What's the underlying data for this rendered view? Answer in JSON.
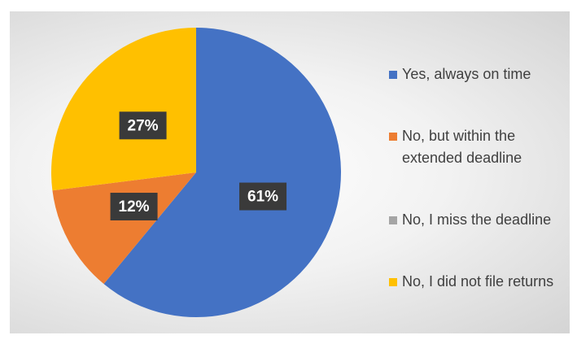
{
  "chart_data": {
    "type": "pie",
    "categories": [
      "Yes, always on time",
      "No, but within the extended deadline",
      "No, I miss the deadline",
      "No, I did not file returns"
    ],
    "values": [
      61,
      12,
      0,
      27
    ],
    "value_labels": [
      "61%",
      "12%",
      null,
      "27%"
    ],
    "colors": [
      "#4472c4",
      "#ed7d31",
      "#a5a5a5",
      "#ffc000"
    ],
    "legend": "right"
  }
}
